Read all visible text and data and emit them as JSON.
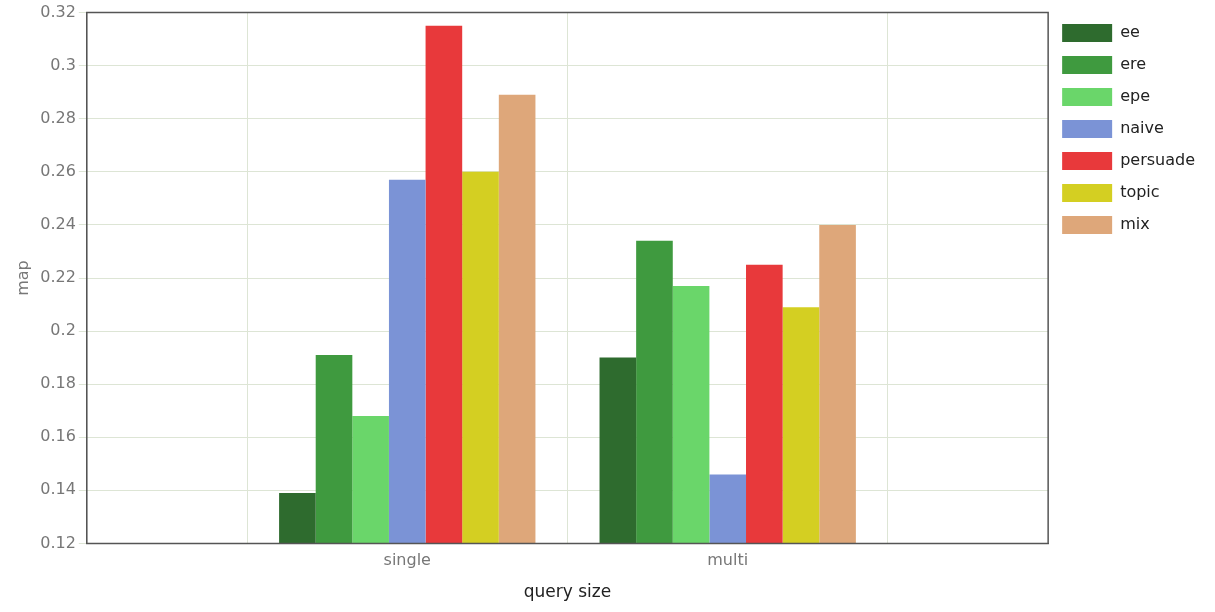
{
  "chart_data": {
    "type": "bar",
    "xlabel": "query size",
    "ylabel": "map",
    "categories": [
      "single",
      "multi"
    ],
    "series": [
      {
        "name": "ee",
        "color": "#2e6b2e",
        "values": [
          0.139,
          0.19
        ]
      },
      {
        "name": "ere",
        "color": "#3f9a3f",
        "values": [
          0.191,
          0.234
        ]
      },
      {
        "name": "epe",
        "color": "#6ad66a",
        "values": [
          0.168,
          0.217
        ]
      },
      {
        "name": "naive",
        "color": "#7b93d6",
        "values": [
          0.257,
          0.146
        ]
      },
      {
        "name": "persuade",
        "color": "#e8393b",
        "values": [
          0.315,
          0.225
        ]
      },
      {
        "name": "topic",
        "color": "#d4cf22",
        "values": [
          0.26,
          0.209
        ]
      },
      {
        "name": "mix",
        "color": "#dea77a",
        "values": [
          0.289,
          0.24
        ]
      }
    ],
    "ylim": [
      0.12,
      0.32
    ],
    "yticks": [
      0.12,
      0.14,
      0.16,
      0.18,
      0.2,
      0.22,
      0.24,
      0.26,
      0.28,
      0.3,
      0.32
    ],
    "grid": true,
    "legend": "top right"
  }
}
